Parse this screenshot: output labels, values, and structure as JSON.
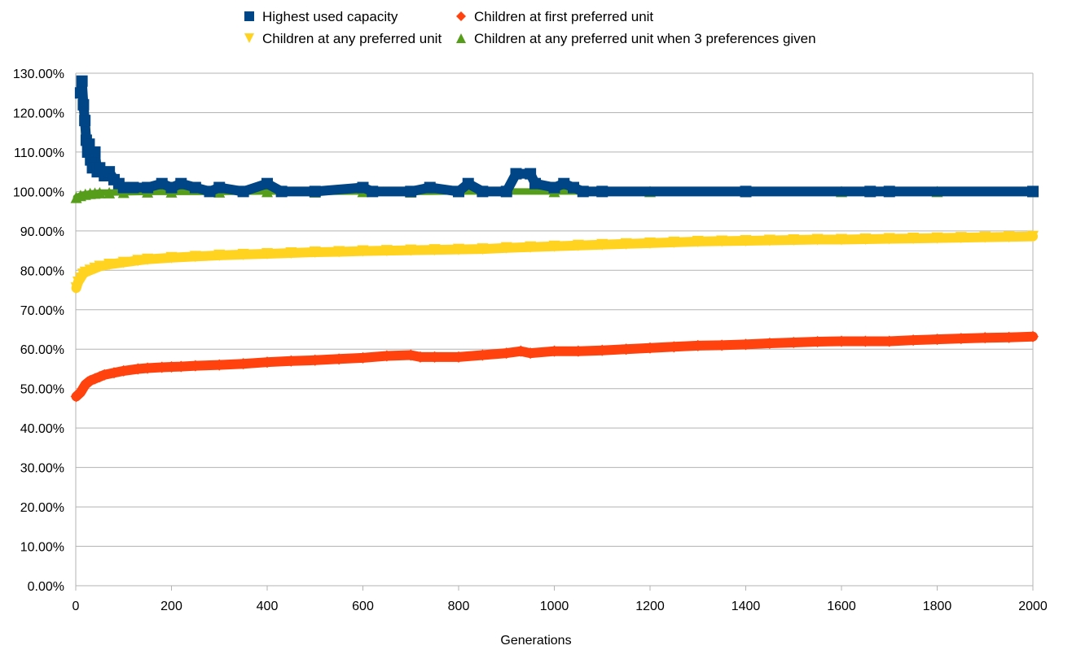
{
  "chart_data": {
    "type": "line",
    "title": "",
    "xlabel": "Generations",
    "ylabel": "",
    "xlim": [
      0,
      2000
    ],
    "ylim": [
      0,
      1.3
    ],
    "grid": true,
    "legend_position": "top",
    "x_ticks": [
      "0",
      "200",
      "400",
      "600",
      "800",
      "1000",
      "1200",
      "1400",
      "1600",
      "1800",
      "2000"
    ],
    "y_ticks": [
      "0.00%",
      "10.00%",
      "20.00%",
      "30.00%",
      "40.00%",
      "50.00%",
      "60.00%",
      "70.00%",
      "80.00%",
      "90.00%",
      "100.00%",
      "110.00%",
      "120.00%",
      "130.00%"
    ],
    "series": [
      {
        "name": "Highest used capacity",
        "color": "#004586",
        "marker": "square",
        "x": [
          10,
          13,
          16,
          19,
          22,
          25,
          28,
          31,
          35,
          40,
          45,
          50,
          60,
          70,
          80,
          90,
          100,
          120,
          150,
          180,
          200,
          220,
          250,
          280,
          300,
          350,
          400,
          430,
          500,
          600,
          620,
          700,
          740,
          800,
          820,
          850,
          900,
          920,
          950,
          960,
          1000,
          1020,
          1040,
          1060,
          1100,
          1400,
          1660,
          1700,
          2000
        ],
        "y": [
          1.25,
          1.28,
          1.22,
          1.18,
          1.13,
          1.1,
          1.12,
          1.08,
          1.06,
          1.1,
          1.05,
          1.06,
          1.04,
          1.05,
          1.03,
          1.02,
          1.01,
          1.01,
          1.01,
          1.02,
          1.01,
          1.02,
          1.01,
          1.0,
          1.01,
          1.0,
          1.02,
          1.0,
          1.0,
          1.01,
          1.0,
          1.0,
          1.01,
          1.0,
          1.02,
          1.0,
          1.0,
          1.045,
          1.045,
          1.02,
          1.01,
          1.02,
          1.01,
          1.0,
          1.0,
          1.0,
          1.0,
          1.0,
          1.0
        ]
      },
      {
        "name": "Children at first preferred unit",
        "color": "#ff420e",
        "marker": "diamond",
        "x": [
          1,
          10,
          20,
          30,
          40,
          50,
          60,
          80,
          100,
          130,
          150,
          180,
          200,
          220,
          250,
          300,
          350,
          400,
          450,
          500,
          550,
          600,
          650,
          700,
          720,
          750,
          800,
          850,
          900,
          930,
          950,
          1000,
          1050,
          1100,
          1150,
          1200,
          1250,
          1300,
          1350,
          1400,
          1450,
          1500,
          1550,
          1600,
          1650,
          1700,
          1750,
          1800,
          1850,
          1900,
          1950,
          2000
        ],
        "y": [
          0.48,
          0.49,
          0.51,
          0.52,
          0.525,
          0.53,
          0.535,
          0.54,
          0.545,
          0.55,
          0.552,
          0.554,
          0.555,
          0.556,
          0.558,
          0.56,
          0.563,
          0.567,
          0.57,
          0.572,
          0.575,
          0.578,
          0.583,
          0.585,
          0.58,
          0.58,
          0.58,
          0.585,
          0.59,
          0.595,
          0.59,
          0.595,
          0.595,
          0.597,
          0.6,
          0.603,
          0.606,
          0.609,
          0.61,
          0.612,
          0.615,
          0.617,
          0.619,
          0.62,
          0.62,
          0.62,
          0.623,
          0.625,
          0.627,
          0.629,
          0.63,
          0.632
        ]
      },
      {
        "name": "Children at any preferred unit",
        "color": "#ffd320",
        "marker": "triangle-down",
        "x": [
          1,
          5,
          10,
          15,
          20,
          30,
          40,
          50,
          70,
          100,
          130,
          150,
          200,
          250,
          300,
          350,
          400,
          450,
          500,
          550,
          600,
          650,
          700,
          750,
          800,
          850,
          900,
          950,
          1000,
          1050,
          1100,
          1150,
          1200,
          1250,
          1300,
          1350,
          1400,
          1450,
          1500,
          1550,
          1600,
          1650,
          1700,
          1750,
          1800,
          1850,
          1900,
          1950,
          2000
        ],
        "y": [
          0.755,
          0.77,
          0.78,
          0.79,
          0.795,
          0.8,
          0.805,
          0.81,
          0.815,
          0.82,
          0.825,
          0.828,
          0.832,
          0.835,
          0.838,
          0.84,
          0.842,
          0.844,
          0.846,
          0.847,
          0.849,
          0.85,
          0.851,
          0.852,
          0.853,
          0.854,
          0.857,
          0.859,
          0.861,
          0.863,
          0.865,
          0.867,
          0.869,
          0.871,
          0.873,
          0.874,
          0.875,
          0.876,
          0.877,
          0.878,
          0.878,
          0.879,
          0.88,
          0.881,
          0.882,
          0.883,
          0.884,
          0.885,
          0.886
        ]
      },
      {
        "name": "Children at any preferred unit when 3 preferences given",
        "color": "#579d1c",
        "marker": "triangle-up",
        "x": [
          1,
          10,
          20,
          30,
          40,
          50,
          70,
          100,
          150,
          200,
          300,
          400,
          500,
          600,
          700,
          800,
          900,
          1000,
          1200,
          1400,
          1600,
          1800,
          2000
        ],
        "y": [
          0.985,
          0.99,
          0.993,
          0.995,
          0.996,
          0.997,
          0.997,
          0.998,
          0.999,
          0.999,
          0.999,
          1.0,
          0.999,
          1.0,
          0.999,
          1.0,
          1.0,
          1.0,
          1.0,
          1.0,
          1.0,
          1.0,
          1.0
        ]
      }
    ]
  }
}
